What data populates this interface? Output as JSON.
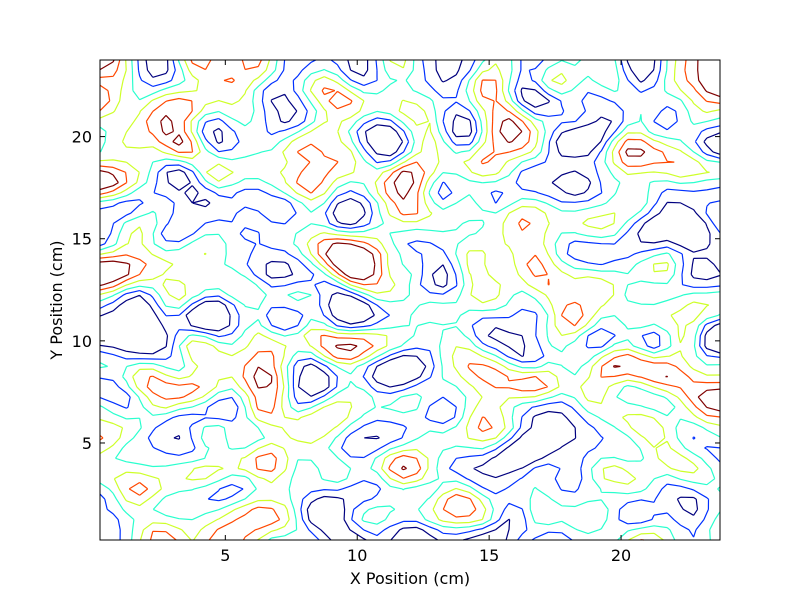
{
  "chart_data": {
    "type": "contour",
    "title": "",
    "xlabel": "X Position (cm)",
    "ylabel": "Y Position (cm)",
    "xlim": [
      0.25,
      23.75
    ],
    "ylim": [
      0.25,
      23.75
    ],
    "xticks": [
      5,
      10,
      15,
      20
    ],
    "yticks": [
      5,
      10,
      15,
      20
    ],
    "grid": false,
    "legend": "none",
    "grid_spacing_cm": 0.5,
    "colormap": "jet",
    "levels": [
      {
        "name": "level-1",
        "value": -0.6,
        "color": "#00007f"
      },
      {
        "name": "level-2",
        "value": -0.3,
        "color": "#0030ff"
      },
      {
        "name": "level-3",
        "value": 0.0,
        "color": "#29ffce"
      },
      {
        "name": "level-4",
        "value": 0.3,
        "color": "#ceff29"
      },
      {
        "name": "level-5",
        "value": 0.6,
        "color": "#ff4800"
      },
      {
        "name": "level-6",
        "value": 0.9,
        "color": "#7f0000"
      }
    ],
    "field_description": "random smooth scalar field sampled on a 0.5 cm grid",
    "seed": 1337
  }
}
